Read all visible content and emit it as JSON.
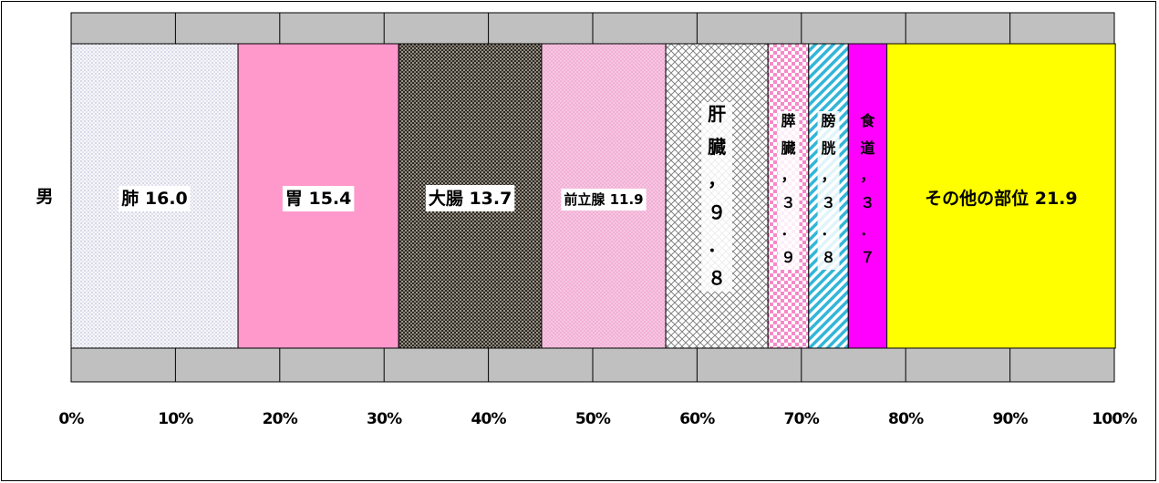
{
  "chart_data": {
    "type": "bar",
    "orientation": "horizontal",
    "stacked": "percent",
    "categories": [
      "男"
    ],
    "xlim": [
      0,
      100
    ],
    "x_tick_labels": [
      "0%",
      "10%",
      "20%",
      "30%",
      "40%",
      "50%",
      "60%",
      "70%",
      "80%",
      "90%",
      "100%"
    ],
    "grid": true,
    "series": [
      {
        "name": "肺",
        "value": 16.0,
        "label": "肺 16.0",
        "color": "#eeeef6",
        "pattern": "dots-light",
        "label_mode": "h"
      },
      {
        "name": "胃",
        "value": 15.4,
        "label": "胃 15.4",
        "color": "#ff99cc",
        "pattern": "none",
        "label_mode": "h"
      },
      {
        "name": "大腸",
        "value": 13.7,
        "label": "大腸 13.7",
        "color": "#555048",
        "pattern": "dots-dark",
        "label_mode": "h"
      },
      {
        "name": "前立腺",
        "value": 11.9,
        "label": "前立腺 11.9",
        "color": "#f4b8dc",
        "pattern": "dots-pink",
        "label_mode": "h"
      },
      {
        "name": "肝臓",
        "value": 9.8,
        "label_chars": [
          "肝",
          "臓",
          "，",
          "９",
          "．",
          "８"
        ],
        "color": "#ffffff",
        "pattern": "crosshatch",
        "label_mode": "v"
      },
      {
        "name": "膵臓",
        "value": 3.9,
        "label_chars": [
          "膵",
          "臓",
          "，",
          "３",
          "．",
          "９"
        ],
        "color": "#ffffff",
        "pattern": "checker",
        "label_mode": "v"
      },
      {
        "name": "膀胱",
        "value": 3.8,
        "label_chars": [
          "膀",
          "胱",
          "，",
          "３",
          "．",
          "８"
        ],
        "color": "#ffffff",
        "pattern": "diagonal",
        "label_mode": "v"
      },
      {
        "name": "食道",
        "value": 3.7,
        "label_chars": [
          "食",
          "道",
          "，",
          "３",
          "．",
          "７"
        ],
        "color": "#ff00ff",
        "pattern": "none",
        "label_mode": "v"
      },
      {
        "name": "その他の部位",
        "value": 21.9,
        "label": "その他の部位 21.9",
        "color": "#ffff00",
        "pattern": "none",
        "label_mode": "h"
      }
    ]
  }
}
